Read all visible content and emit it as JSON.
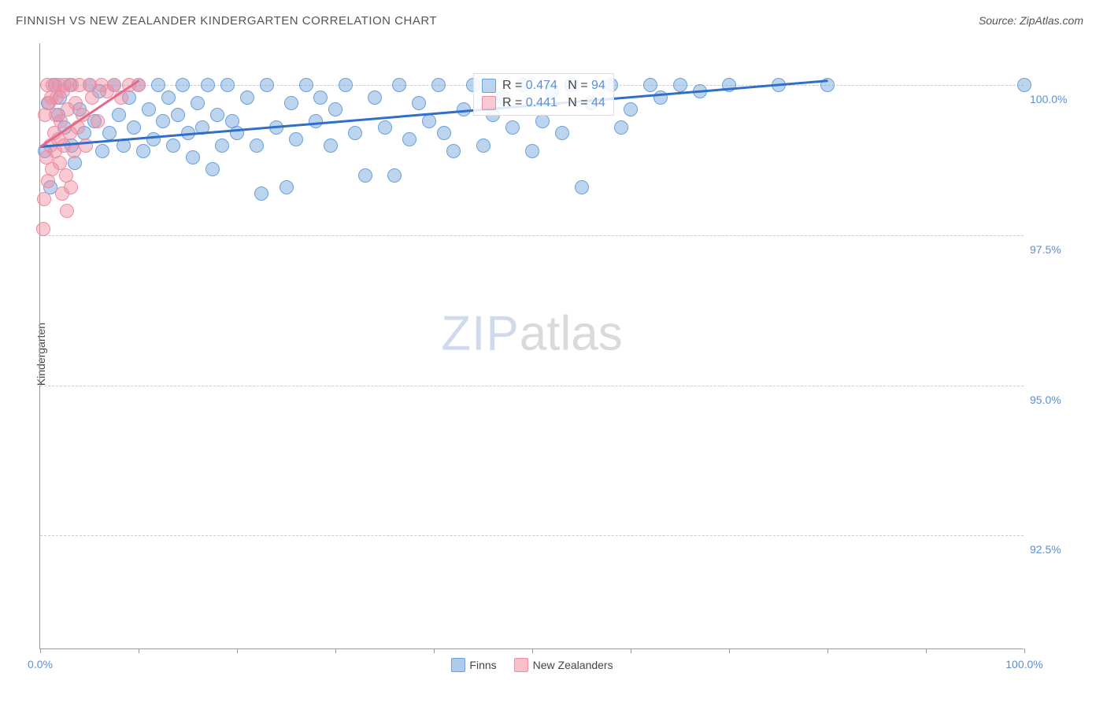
{
  "title": "FINNISH VS NEW ZEALANDER KINDERGARTEN CORRELATION CHART",
  "source_label": "Source: ZipAtlas.com",
  "ylabel": "Kindergarten",
  "watermark": {
    "part1": "ZIP",
    "part2": "atlas"
  },
  "chart": {
    "type": "scatter",
    "background_color": "#ffffff",
    "grid_color": "#cccccc",
    "axis_color": "#999999",
    "tick_label_color": "#5b8fd6",
    "xlim": [
      0,
      100
    ],
    "ylim": [
      90.6,
      100.7
    ],
    "xtick_positions": [
      0,
      10,
      20,
      30,
      40,
      50,
      60,
      70,
      80,
      90,
      100
    ],
    "xtick_labels": {
      "0": "0.0%",
      "100": "100.0%"
    },
    "ytick_positions": [
      92.5,
      95.0,
      97.5,
      100.0
    ],
    "ytick_labels": [
      "92.5%",
      "95.0%",
      "97.5%",
      "100.0%"
    ],
    "marker_base_radius": 9,
    "series": [
      {
        "name": "Finns",
        "fill": "rgba(108,160,220,0.45)",
        "stroke": "#6ca0dc",
        "trend_color": "#2f6fc9",
        "trend": {
          "x1": 0,
          "y1": 99.0,
          "x2": 80,
          "y2": 100.1
        },
        "stats": {
          "R": "0.474",
          "N": "94"
        },
        "points": [
          [
            0.5,
            98.9
          ],
          [
            0.8,
            99.7
          ],
          [
            1.0,
            98.3
          ],
          [
            1.5,
            100.0
          ],
          [
            1.8,
            99.5
          ],
          [
            2.0,
            99.8
          ],
          [
            2.5,
            99.3
          ],
          [
            3.0,
            100.0
          ],
          [
            3.2,
            99.0
          ],
          [
            3.5,
            98.7
          ],
          [
            4.0,
            99.6
          ],
          [
            4.5,
            99.2
          ],
          [
            5.0,
            100.0
          ],
          [
            5.5,
            99.4
          ],
          [
            6.0,
            99.9
          ],
          [
            6.3,
            98.9
          ],
          [
            7.0,
            99.2
          ],
          [
            7.5,
            100.0
          ],
          [
            8.0,
            99.5
          ],
          [
            8.5,
            99.0
          ],
          [
            9.0,
            99.8
          ],
          [
            9.5,
            99.3
          ],
          [
            10.0,
            100.0
          ],
          [
            10.5,
            98.9
          ],
          [
            11.0,
            99.6
          ],
          [
            11.5,
            99.1
          ],
          [
            12.0,
            100.0
          ],
          [
            12.5,
            99.4
          ],
          [
            13.0,
            99.8
          ],
          [
            13.5,
            99.0
          ],
          [
            14.0,
            99.5
          ],
          [
            14.5,
            100.0
          ],
          [
            15.0,
            99.2
          ],
          [
            15.5,
            98.8
          ],
          [
            16.0,
            99.7
          ],
          [
            16.5,
            99.3
          ],
          [
            17.0,
            100.0
          ],
          [
            17.5,
            98.6
          ],
          [
            18.0,
            99.5
          ],
          [
            18.5,
            99.0
          ],
          [
            19.0,
            100.0
          ],
          [
            19.5,
            99.4
          ],
          [
            20.0,
            99.2
          ],
          [
            21.0,
            99.8
          ],
          [
            22.0,
            99.0
          ],
          [
            22.5,
            98.2
          ],
          [
            23.0,
            100.0
          ],
          [
            24.0,
            99.3
          ],
          [
            25.0,
            98.3
          ],
          [
            25.5,
            99.7
          ],
          [
            26.0,
            99.1
          ],
          [
            27.0,
            100.0
          ],
          [
            28.0,
            99.4
          ],
          [
            28.5,
            99.8
          ],
          [
            29.5,
            99.0
          ],
          [
            30.0,
            99.6
          ],
          [
            31.0,
            100.0
          ],
          [
            32.0,
            99.2
          ],
          [
            33.0,
            98.5
          ],
          [
            34.0,
            99.8
          ],
          [
            35.0,
            99.3
          ],
          [
            36.0,
            98.5
          ],
          [
            36.5,
            100.0
          ],
          [
            37.5,
            99.1
          ],
          [
            38.5,
            99.7
          ],
          [
            39.5,
            99.4
          ],
          [
            40.5,
            100.0
          ],
          [
            41.0,
            99.2
          ],
          [
            42.0,
            98.9
          ],
          [
            43.0,
            99.6
          ],
          [
            44.0,
            100.0
          ],
          [
            45.0,
            99.0
          ],
          [
            46.0,
            99.5
          ],
          [
            47.0,
            99.8
          ],
          [
            48.0,
            99.3
          ],
          [
            49.0,
            100.0
          ],
          [
            50.0,
            98.9
          ],
          [
            51.0,
            99.4
          ],
          [
            52.0,
            99.9
          ],
          [
            53.0,
            99.2
          ],
          [
            54.0,
            100.0
          ],
          [
            55.0,
            98.3
          ],
          [
            56.0,
            99.7
          ],
          [
            58.0,
            100.0
          ],
          [
            59.0,
            99.3
          ],
          [
            60.0,
            99.6
          ],
          [
            62.0,
            100.0
          ],
          [
            63.0,
            99.8
          ],
          [
            65.0,
            100.0
          ],
          [
            67.0,
            99.9
          ],
          [
            70.0,
            100.0
          ],
          [
            75.0,
            100.0
          ],
          [
            80.0,
            100.0
          ],
          [
            100.0,
            100.0
          ]
        ]
      },
      {
        "name": "New Zealanders",
        "fill": "rgba(240,140,160,0.45)",
        "stroke": "#ef8ba3",
        "trend_color": "#e26a88",
        "trend": {
          "x1": 0,
          "y1": 99.0,
          "x2": 10,
          "y2": 100.1
        },
        "stats": {
          "R": "0.441",
          "N": "44"
        },
        "points": [
          [
            0.3,
            97.6
          ],
          [
            0.4,
            98.1
          ],
          [
            0.5,
            99.5
          ],
          [
            0.6,
            98.8
          ],
          [
            0.7,
            100.0
          ],
          [
            0.8,
            98.4
          ],
          [
            0.9,
            99.7
          ],
          [
            1.0,
            99.0
          ],
          [
            1.1,
            99.8
          ],
          [
            1.2,
            98.6
          ],
          [
            1.3,
            100.0
          ],
          [
            1.4,
            99.2
          ],
          [
            1.5,
            98.9
          ],
          [
            1.6,
            99.5
          ],
          [
            1.7,
            99.8
          ],
          [
            1.8,
            99.1
          ],
          [
            1.9,
            100.0
          ],
          [
            2.0,
            98.7
          ],
          [
            2.1,
            99.4
          ],
          [
            2.2,
            98.2
          ],
          [
            2.3,
            99.9
          ],
          [
            2.4,
            99.0
          ],
          [
            2.5,
            100.0
          ],
          [
            2.6,
            98.5
          ],
          [
            2.8,
            99.6
          ],
          [
            3.0,
            99.2
          ],
          [
            3.2,
            100.0
          ],
          [
            3.4,
            98.9
          ],
          [
            3.6,
            99.7
          ],
          [
            3.8,
            99.3
          ],
          [
            4.0,
            100.0
          ],
          [
            4.3,
            99.5
          ],
          [
            4.6,
            99.0
          ],
          [
            5.0,
            100.0
          ],
          [
            5.3,
            99.8
          ],
          [
            5.8,
            99.4
          ],
          [
            6.2,
            100.0
          ],
          [
            6.8,
            99.9
          ],
          [
            7.5,
            100.0
          ],
          [
            8.2,
            99.8
          ],
          [
            9.0,
            100.0
          ],
          [
            10.0,
            100.0
          ],
          [
            2.7,
            97.9
          ],
          [
            3.1,
            98.3
          ]
        ]
      }
    ],
    "legend_bottom": [
      {
        "label": "Finns",
        "fill": "rgba(108,160,220,0.55)",
        "stroke": "#6ca0dc"
      },
      {
        "label": "New Zealanders",
        "fill": "rgba(240,140,160,0.55)",
        "stroke": "#ef8ba3"
      }
    ]
  }
}
